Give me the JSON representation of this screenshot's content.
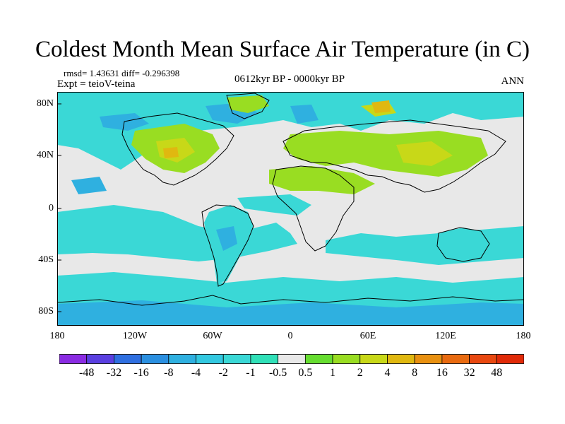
{
  "title": "Coldest Month Mean Surface Air Temperature (in C)",
  "stats": "rmsd= 1.43631 diff= -0.296398",
  "experiment": "Expt = teioV-teina",
  "period": "0612kyr BP - 0000kyr BP",
  "season": "ANN",
  "map": {
    "lon_range": [
      -180,
      180
    ],
    "lat_range": [
      -90,
      90
    ],
    "background_color": "#E8E8E8",
    "lat_ticks": [
      "80N",
      "40N",
      "0",
      "40S",
      "80S"
    ],
    "lon_ticks": [
      "180",
      "120W",
      "60W",
      "0",
      "60E",
      "120E",
      "180"
    ]
  },
  "colorbar": {
    "levels": [
      "-48",
      "-32",
      "-16",
      "-8",
      "-4",
      "-2",
      "-1",
      "-0.5",
      "0.5",
      "1",
      "2",
      "4",
      "8",
      "16",
      "32",
      "48"
    ],
    "colors": [
      "#8A2BE2",
      "#5A3FE0",
      "#2F6FE0",
      "#2A8FE0",
      "#2FB0E0",
      "#33C8E0",
      "#3AD8D6",
      "#30E0B8",
      "#E8E8E8",
      "#66DD30",
      "#99DD22",
      "#C8D818",
      "#E0B810",
      "#E89010",
      "#E86A10",
      "#E84810",
      "#E02A08"
    ]
  }
}
